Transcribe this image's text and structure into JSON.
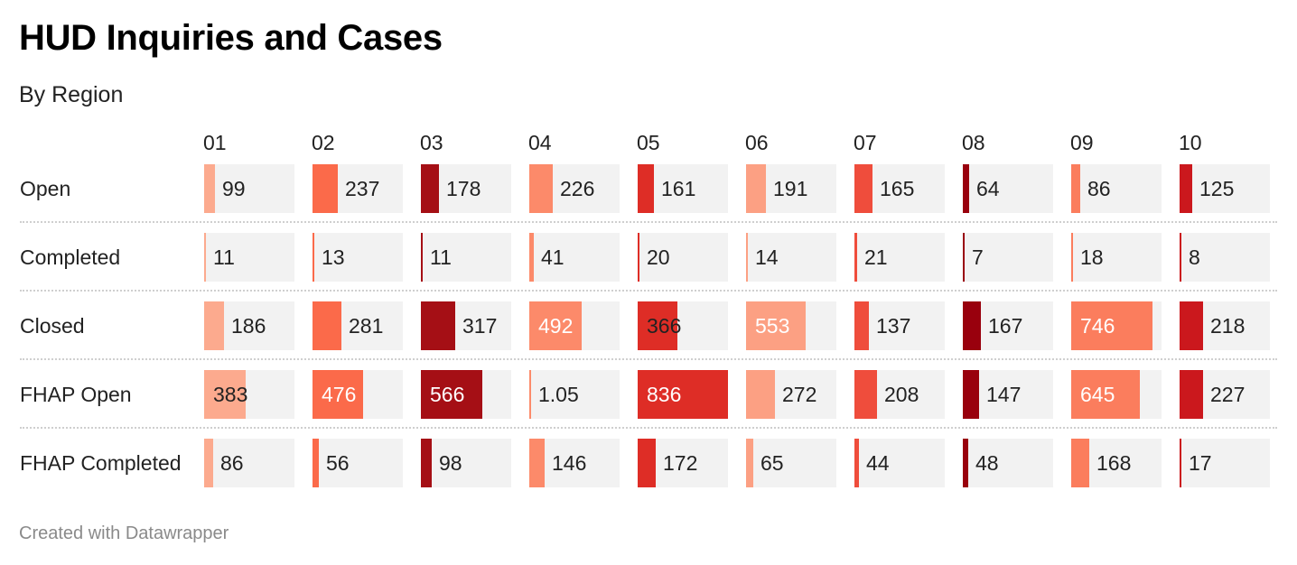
{
  "title": "HUD Inquiries and Cases",
  "subtitle": "By Region",
  "footer": "Created with Datawrapper",
  "chart_data": {
    "type": "table",
    "title": "HUD Inquiries and Cases",
    "subtitle": "By Region",
    "columns": [
      "01",
      "02",
      "03",
      "04",
      "05",
      "06",
      "07",
      "08",
      "09",
      "10"
    ],
    "rows": [
      {
        "label": "Open",
        "values": [
          99,
          237,
          178,
          226,
          161,
          191,
          165,
          64,
          86,
          125
        ],
        "display": [
          "99",
          "237",
          "178",
          "226",
          "161",
          "191",
          "165",
          "64",
          "86",
          "125"
        ],
        "fill": [
          0.12,
          0.28,
          0.2,
          0.26,
          0.18,
          0.22,
          0.2,
          0.07,
          0.1,
          0.14
        ]
      },
      {
        "label": "Completed",
        "values": [
          11,
          13,
          11,
          41,
          20,
          14,
          21,
          7,
          18,
          8
        ],
        "display": [
          "11",
          "13",
          "11",
          "41",
          "20",
          "14",
          "21",
          "7",
          "18",
          "8"
        ],
        "fill": [
          0.013,
          0.016,
          0.013,
          0.05,
          0.024,
          0.017,
          0.025,
          0.008,
          0.022,
          0.01
        ]
      },
      {
        "label": "Closed",
        "values": [
          186,
          281,
          317,
          492,
          366,
          553,
          137,
          167,
          746,
          218
        ],
        "display": [
          "186",
          "281",
          "317",
          "492",
          "366",
          "553",
          "137",
          "167",
          "746",
          "218"
        ],
        "fill": [
          0.22,
          0.32,
          0.38,
          0.58,
          0.44,
          0.66,
          0.16,
          0.2,
          0.9,
          0.26
        ]
      },
      {
        "label": "FHAP Open",
        "values": [
          383,
          476,
          566,
          1.05,
          836,
          272,
          208,
          147,
          645,
          227
        ],
        "display": [
          "383",
          "476",
          "566",
          "1.05",
          "836",
          "272",
          "208",
          "147",
          "645",
          "227"
        ],
        "fill": [
          0.46,
          0.56,
          0.68,
          0.013,
          1.0,
          0.32,
          0.25,
          0.18,
          0.76,
          0.26
        ]
      },
      {
        "label": "FHAP Completed",
        "values": [
          86,
          56,
          98,
          146,
          172,
          65,
          44,
          48,
          168,
          17
        ],
        "display": [
          "86",
          "56",
          "98",
          "146",
          "172",
          "65",
          "44",
          "48",
          "168",
          "17"
        ],
        "fill": [
          0.1,
          0.07,
          0.12,
          0.17,
          0.2,
          0.08,
          0.05,
          0.06,
          0.2,
          0.02
        ]
      }
    ],
    "column_colors": [
      "#fcaa8e",
      "#fb6a4a",
      "#a50f15",
      "#fc8a6a",
      "#de2d26",
      "#fca083",
      "#ef4d3c",
      "#99000d",
      "#fb7d5d",
      "#cb181d"
    ]
  }
}
